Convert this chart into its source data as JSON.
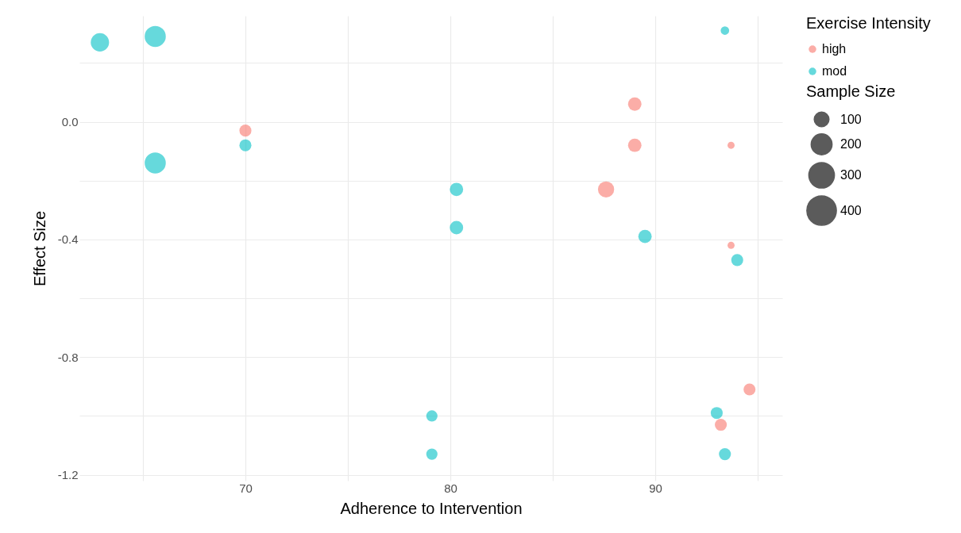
{
  "chart_data": {
    "type": "bubble",
    "xlabel": "Adherence to Intervention",
    "ylabel": "Effect Size",
    "legend_title": "Exercise Intensity",
    "annotations": [
      "Sample Size"
    ],
    "legend": "right",
    "grid": true,
    "xlim": [
      61.9,
      96.2
    ],
    "xticks": [
      {
        "value": 65,
        "label": null
      },
      70,
      {
        "value": 75,
        "label": null
      },
      80,
      {
        "value": 85,
        "label": null
      },
      90,
      {
        "value": 95,
        "label": null
      }
    ],
    "ylim": [
      -1.22,
      0.36
    ],
    "yticks": [
      {
        "value": 0.2,
        "label": null
      },
      {
        "value": 0,
        "label": "0.0"
      },
      {
        "value": -0.2,
        "label": null
      },
      -0.4,
      {
        "value": -0.6,
        "label": null
      },
      -0.8,
      {
        "value": -1.0,
        "label": null
      },
      -1.2
    ],
    "size_legend": [
      100,
      200,
      300,
      400
    ],
    "series": [
      {
        "name": "high",
        "color": "#f8766d",
        "x": [
          70,
          89,
          89,
          87.6,
          93.7,
          93.7,
          94.6,
          93.2
        ],
        "values": [
          -0.03,
          0.06,
          -0.08,
          -0.23,
          -0.08,
          -0.42,
          -0.91,
          -1.03
        ],
        "sizes": [
          66,
          82,
          82,
          120,
          23,
          23,
          66,
          66
        ]
      },
      {
        "name": "mod",
        "color": "#00bfc4",
        "x": [
          62.9,
          65.6,
          65.6,
          70,
          80.3,
          80.3,
          79.1,
          79.1,
          89.5,
          93.4,
          94.0,
          93.0,
          93.4
        ],
        "values": [
          0.27,
          0.29,
          -0.14,
          -0.08,
          -0.23,
          -0.36,
          -1.0,
          -1.13,
          -0.39,
          0.31,
          -0.47,
          -0.99,
          -1.13
        ],
        "sizes": [
          153,
          204,
          204,
          66,
          82,
          82,
          58,
          58,
          82,
          33,
          66,
          66,
          66
        ]
      }
    ]
  }
}
